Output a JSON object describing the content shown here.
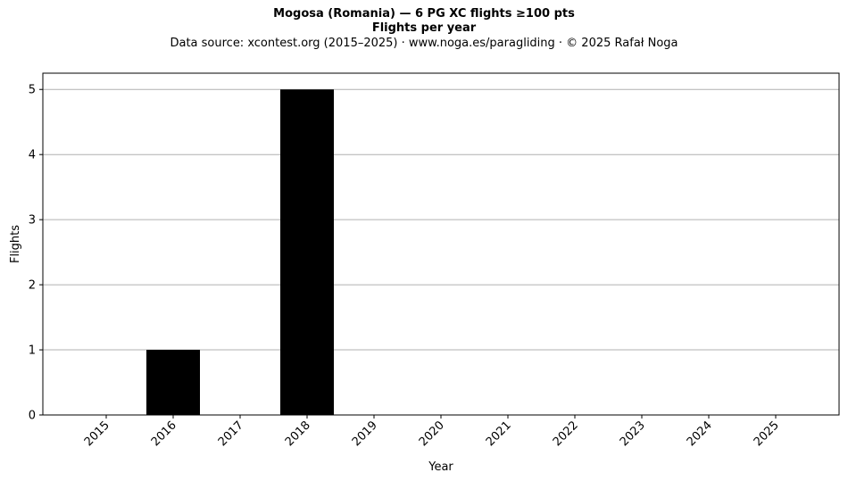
{
  "chart_data": {
    "type": "bar",
    "title": "Mogosa (Romania)  —  6 PG XC flights ≥100 pts",
    "subtitle": "Flights per year",
    "source_note": "Data source: xcontest.org (2015–2025)  ·  www.noga.es/paragliding  ·  © 2025 Rafał Noga",
    "xlabel": "Year",
    "ylabel": "Flights",
    "categories": [
      "2015",
      "2016",
      "2017",
      "2018",
      "2019",
      "2020",
      "2021",
      "2022",
      "2023",
      "2024",
      "2025"
    ],
    "values": [
      0,
      1,
      0,
      5,
      0,
      0,
      0,
      0,
      0,
      0,
      0
    ],
    "ylim": [
      0,
      5.25
    ],
    "yticks": [
      0,
      1,
      2,
      3,
      4,
      5
    ],
    "grid": "horizontal",
    "bar_color": "#000000",
    "grid_color": "#b0b0b0"
  }
}
